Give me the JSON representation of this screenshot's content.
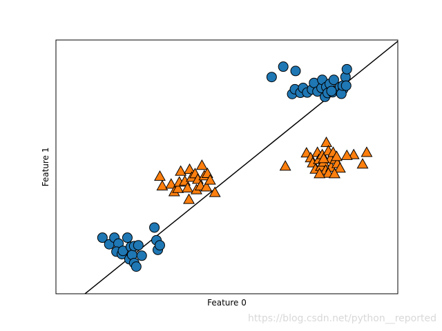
{
  "chart_data": {
    "type": "scatter",
    "title": "",
    "xlabel": "Feature 0",
    "ylabel": "Feature 1",
    "xlim": [
      0,
      100
    ],
    "ylim": [
      0,
      100
    ],
    "xticks": [],
    "yticks": [],
    "grid": false,
    "series": [
      {
        "marker": "circle",
        "color": "#1f77b4",
        "points": [
          [
            13.6,
            22.1
          ],
          [
            15.6,
            19.5
          ],
          [
            17.1,
            22.1
          ],
          [
            18.3,
            19.8
          ],
          [
            17.7,
            16.6
          ],
          [
            19.3,
            15.6
          ],
          [
            20.9,
            22.1
          ],
          [
            19.6,
            16.9
          ],
          [
            21.5,
            13.6
          ],
          [
            21.9,
            18.5
          ],
          [
            22.3,
            15.3
          ],
          [
            22.9,
            18.8
          ],
          [
            22.9,
            12.1
          ],
          [
            23.5,
            10.7
          ],
          [
            24.1,
            19.1
          ],
          [
            25.1,
            15.0
          ],
          [
            28.8,
            26.1
          ],
          [
            29.4,
            21.1
          ],
          [
            29.8,
            17.3
          ],
          [
            30.4,
            19.1
          ],
          [
            63.1,
            85.4
          ],
          [
            66.5,
            89.5
          ],
          [
            70.1,
            87.8
          ],
          [
            69.1,
            78.7
          ],
          [
            69.9,
            80.6
          ],
          [
            71.5,
            79.2
          ],
          [
            72.3,
            81.1
          ],
          [
            73.5,
            79.3
          ],
          [
            74.9,
            80.5
          ],
          [
            75.5,
            83.1
          ],
          [
            76.5,
            79.7
          ],
          [
            77.7,
            81.1
          ],
          [
            77.9,
            84.3
          ],
          [
            78.7,
            77.6
          ],
          [
            79.1,
            81.5
          ],
          [
            79.5,
            79.1
          ],
          [
            80.1,
            82.7
          ],
          [
            80.9,
            79.4
          ],
          [
            81.3,
            84.3
          ],
          [
            82.5,
            80.3
          ],
          [
            83.1,
            81.5
          ],
          [
            84.0,
            80.6
          ],
          [
            83.5,
            78.8
          ],
          [
            83.9,
            82.0
          ],
          [
            84.7,
            85.4
          ],
          [
            84.9,
            82.0
          ],
          [
            85.1,
            88.5
          ],
          [
            80.6,
            79.9
          ]
        ]
      },
      {
        "marker": "triangle",
        "color": "#ff7f0e",
        "points": [
          [
            30.4,
            46.2
          ],
          [
            31.1,
            42.4
          ],
          [
            33.7,
            43.1
          ],
          [
            34.6,
            40.1
          ],
          [
            35.7,
            41.4
          ],
          [
            36.1,
            43.9
          ],
          [
            36.5,
            48.2
          ],
          [
            37.7,
            44.3
          ],
          [
            38.5,
            41.6
          ],
          [
            38.9,
            37.1
          ],
          [
            39.1,
            48.9
          ],
          [
            39.7,
            45.8
          ],
          [
            40.7,
            47.2
          ],
          [
            41.5,
            45.0
          ],
          [
            41.1,
            40.9
          ],
          [
            42.3,
            42.4
          ],
          [
            42.7,
            50.5
          ],
          [
            43.4,
            46.4
          ],
          [
            44.3,
            47.3
          ],
          [
            44.0,
            42.0
          ],
          [
            45.1,
            44.7
          ],
          [
            46.5,
            39.8
          ],
          [
            67.1,
            50.2
          ],
          [
            73.3,
            55.4
          ],
          [
            74.5,
            53.5
          ],
          [
            75.1,
            51.5
          ],
          [
            75.9,
            49.0
          ],
          [
            76.5,
            55.6
          ],
          [
            76.9,
            52.8
          ],
          [
            77.5,
            50.1
          ],
          [
            77.9,
            54.7
          ],
          [
            78.3,
            51.8
          ],
          [
            78.9,
            48.6
          ],
          [
            79.1,
            59.5
          ],
          [
            79.7,
            56.2
          ],
          [
            80.3,
            53.1
          ],
          [
            80.5,
            49.8
          ],
          [
            81.1,
            55.6
          ],
          [
            81.7,
            52.9
          ],
          [
            82.3,
            51.2
          ],
          [
            83.1,
            49.4
          ],
          [
            79.7,
            47.4
          ],
          [
            81.5,
            47.2
          ],
          [
            77.1,
            47.2
          ],
          [
            87.1,
            54.7
          ],
          [
            89.7,
            51.0
          ],
          [
            90.9,
            55.6
          ],
          [
            85.1,
            54.4
          ],
          [
            82.1,
            54.0
          ],
          [
            78.3,
            53.2
          ]
        ]
      }
    ],
    "decision_line": {
      "color": "#000000",
      "points": [
        [
          8.5,
          0
        ],
        [
          100,
          99.5
        ]
      ]
    }
  },
  "watermark": "https://blog.csdn.net/python__reported"
}
